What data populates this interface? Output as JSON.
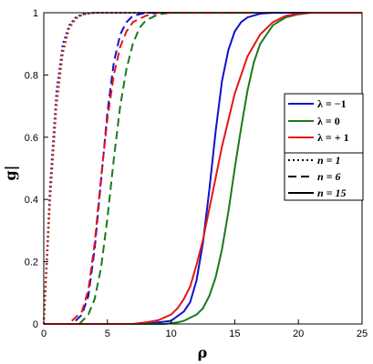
{
  "chart_data": {
    "type": "line",
    "xlabel": "ρ",
    "ylabel": "g|",
    "xlim": [
      0,
      25
    ],
    "ylim": [
      0,
      1
    ],
    "xticks": [
      "0",
      "5",
      "10",
      "15",
      "20",
      "25"
    ],
    "yticks": [
      "0",
      "0.2",
      "0.4",
      "0.6",
      "0.8",
      "1"
    ],
    "grid": false,
    "legend_position": "right",
    "legend_colors": [
      {
        "label": "λ = −1",
        "color": "#1010d0"
      },
      {
        "label": "λ = 0",
        "color": "#1a7a1a"
      },
      {
        "label": "λ = + 1",
        "color": "#e01818"
      }
    ],
    "legend_styles": [
      {
        "label": "n = 1",
        "dash": "dotted"
      },
      {
        "label": "n = 6",
        "dash": "dashed"
      },
      {
        "label": "n = 15",
        "dash": "solid"
      }
    ],
    "series": [
      {
        "lambda": -1,
        "n": 1,
        "color": "#1010d0",
        "dash": "dotted",
        "x": [
          0,
          0.5,
          1,
          1.5,
          2,
          2.5,
          3,
          3.5,
          4,
          5,
          6,
          25
        ],
        "y": [
          0,
          0.45,
          0.75,
          0.9,
          0.96,
          0.985,
          0.995,
          0.998,
          1,
          1,
          1,
          1
        ]
      },
      {
        "lambda": 0,
        "n": 1,
        "color": "#1a7a1a",
        "dash": "dotted",
        "x": [
          0,
          0.5,
          1,
          1.5,
          2,
          2.5,
          3,
          3.5,
          4,
          5,
          6,
          25
        ],
        "y": [
          0,
          0.4,
          0.7,
          0.87,
          0.95,
          0.98,
          0.993,
          0.998,
          1,
          1,
          1,
          1
        ]
      },
      {
        "lambda": 1,
        "n": 1,
        "color": "#e01818",
        "dash": "dotted",
        "x": [
          0,
          0.5,
          1,
          1.5,
          2,
          2.5,
          3,
          3.5,
          4,
          5,
          6,
          25
        ],
        "y": [
          0,
          0.42,
          0.72,
          0.88,
          0.955,
          0.983,
          0.994,
          0.998,
          1,
          1,
          1,
          1
        ]
      },
      {
        "lambda": -1,
        "n": 6,
        "color": "#1010d0",
        "dash": "dashed",
        "x": [
          2.5,
          3,
          3.5,
          4,
          4.5,
          5,
          5.5,
          6,
          6.5,
          7,
          8,
          9,
          10,
          25
        ],
        "y": [
          0.01,
          0.03,
          0.09,
          0.24,
          0.46,
          0.68,
          0.84,
          0.93,
          0.97,
          0.99,
          1,
          1,
          1,
          1
        ]
      },
      {
        "lambda": 0,
        "n": 6,
        "color": "#1a7a1a",
        "dash": "dashed",
        "x": [
          2.8,
          3.5,
          4,
          4.5,
          5,
          5.5,
          6,
          6.5,
          7,
          7.5,
          8,
          9,
          10,
          25
        ],
        "y": [
          0.0,
          0.03,
          0.08,
          0.18,
          0.34,
          0.53,
          0.7,
          0.82,
          0.9,
          0.95,
          0.975,
          0.995,
          1,
          1
        ]
      },
      {
        "lambda": 1,
        "n": 6,
        "color": "#e01818",
        "dash": "dashed",
        "x": [
          2.2,
          3,
          3.5,
          4,
          4.5,
          5,
          5.5,
          6,
          6.5,
          7,
          8,
          9,
          10,
          25
        ],
        "y": [
          0.01,
          0.04,
          0.11,
          0.26,
          0.47,
          0.66,
          0.8,
          0.89,
          0.94,
          0.97,
          0.99,
          1,
          1,
          1
        ]
      },
      {
        "lambda": -1,
        "n": 15,
        "color": "#1010d0",
        "dash": "solid",
        "x": [
          0,
          8,
          9,
          10,
          11,
          11.5,
          12,
          12.5,
          13,
          13.5,
          14,
          14.5,
          15,
          15.5,
          16,
          17,
          18,
          19,
          25
        ],
        "y": [
          0,
          0.0,
          0.005,
          0.01,
          0.04,
          0.07,
          0.14,
          0.26,
          0.43,
          0.62,
          0.78,
          0.88,
          0.94,
          0.97,
          0.985,
          0.997,
          1,
          1,
          1
        ]
      },
      {
        "lambda": 0,
        "n": 15,
        "color": "#1a7a1a",
        "dash": "solid",
        "x": [
          0,
          9.5,
          10.5,
          11,
          12,
          12.5,
          13,
          13.5,
          14,
          14.5,
          15,
          15.5,
          16,
          16.5,
          17,
          18,
          19,
          20,
          21,
          25
        ],
        "y": [
          0,
          0.0,
          0.005,
          0.01,
          0.03,
          0.05,
          0.09,
          0.15,
          0.24,
          0.36,
          0.5,
          0.63,
          0.75,
          0.84,
          0.9,
          0.96,
          0.985,
          0.995,
          1,
          1
        ]
      },
      {
        "lambda": 1,
        "n": 15,
        "color": "#e01818",
        "dash": "solid",
        "x": [
          0,
          7,
          8,
          9,
          10,
          10.5,
          11,
          11.5,
          12,
          12.5,
          13,
          13.5,
          14,
          15,
          16,
          17,
          18,
          19,
          20,
          21,
          25
        ],
        "y": [
          0,
          0.0,
          0.005,
          0.012,
          0.03,
          0.05,
          0.08,
          0.12,
          0.19,
          0.27,
          0.37,
          0.47,
          0.57,
          0.74,
          0.86,
          0.93,
          0.97,
          0.99,
          0.997,
          1,
          1
        ]
      }
    ]
  }
}
